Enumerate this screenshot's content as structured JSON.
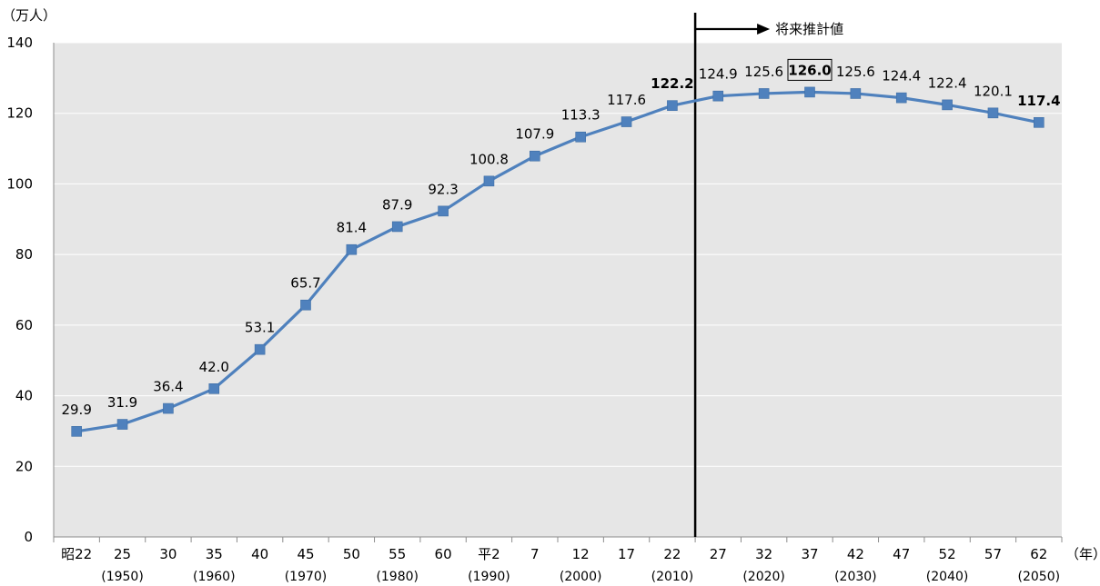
{
  "chart_data": {
    "type": "line",
    "y_unit": "（万人）",
    "x_unit": "（年）",
    "ylim": [
      0,
      140
    ],
    "y_ticks": [
      "0",
      "20",
      "40",
      "60",
      "80",
      "100",
      "120",
      "140"
    ],
    "grid": true,
    "categories": [
      "昭22",
      "25",
      "30",
      "35",
      "40",
      "45",
      "50",
      "55",
      "60",
      "平2",
      "7",
      "12",
      "17",
      "22",
      "27",
      "32",
      "37",
      "42",
      "47",
      "52",
      "57",
      "62"
    ],
    "category_sub": [
      "",
      "(1950)",
      "",
      "(1960)",
      "",
      "(1970)",
      "",
      "(1980)",
      "",
      "(1990)",
      "",
      "(2000)",
      "",
      "(2010)",
      "",
      "(2020)",
      "",
      "(2030)",
      "",
      "(2040)",
      "",
      "(2050)"
    ],
    "series": [
      {
        "values": [
          29.9,
          31.9,
          36.4,
          42.0,
          53.1,
          65.7,
          81.4,
          87.9,
          92.3,
          100.8,
          107.9,
          113.3,
          117.6,
          122.2,
          124.9,
          125.6,
          126.0,
          125.6,
          124.4,
          122.4,
          120.1,
          117.4
        ],
        "labels": [
          "29.9",
          "31.9",
          "36.4",
          "42.0",
          "53.1",
          "65.7",
          "81.4",
          "87.9",
          "92.3",
          "100.8",
          "107.9",
          "113.3",
          "117.6",
          "122.2",
          "124.9",
          "125.6",
          "126.0",
          "125.6",
          "124.4",
          "122.4",
          "120.1",
          "117.4"
        ],
        "color": "#4f81bd"
      }
    ],
    "bold_label_indices": [
      13,
      16,
      21
    ],
    "boxed_label_index": 16,
    "projection_label": "将来推計値"
  }
}
